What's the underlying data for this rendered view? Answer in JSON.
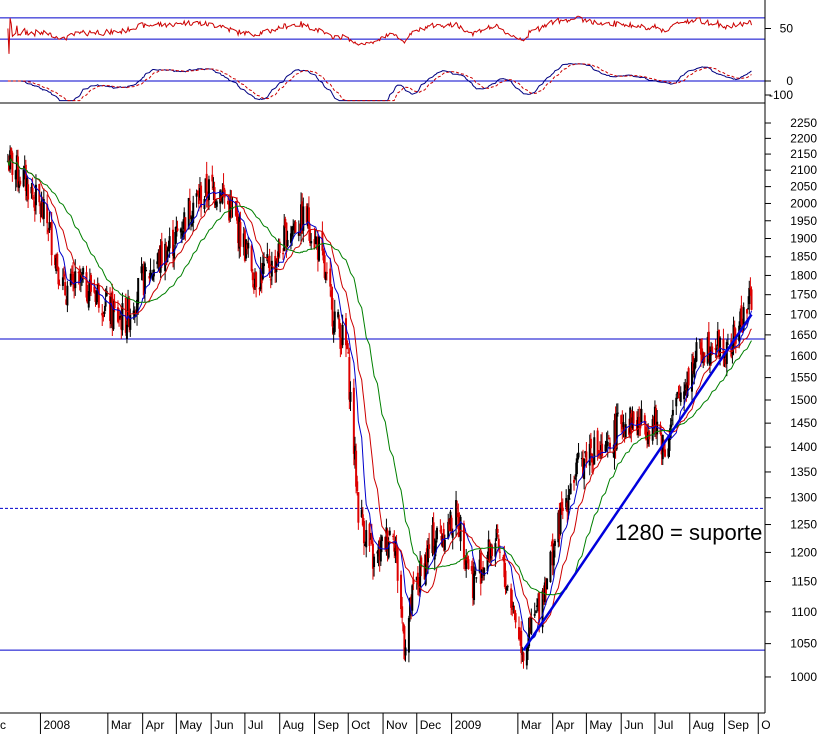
{
  "chart_data": [
    {
      "type": "line",
      "panel": "oscillator-upper",
      "ylim": [
        0,
        100
      ],
      "yticks": [
        "50"
      ],
      "hlines": [
        30,
        70
      ],
      "series_colors": [
        "#cc0000"
      ]
    },
    {
      "type": "line",
      "panel": "oscillator-lower",
      "ylim": [
        -150,
        150
      ],
      "yticks": [
        "0",
        "-100"
      ],
      "hlines": [
        0
      ],
      "series_colors": [
        "#000080",
        "#cc0000"
      ]
    },
    {
      "type": "candlestick",
      "panel": "price",
      "scale": "log",
      "ylim": [
        950,
        2300
      ],
      "yticks": [
        "2250",
        "2200",
        "2150",
        "2100",
        "2050",
        "2000",
        "1950",
        "1900",
        "1850",
        "1800",
        "1750",
        "1700",
        "1650",
        "1600",
        "1550",
        "1500",
        "1450",
        "1400",
        "1350",
        "1300",
        "1250",
        "1200",
        "1150",
        "1100",
        "1050",
        "1000"
      ],
      "xticks": [
        "c",
        "2008",
        "Mar",
        "Apr",
        "May",
        "Jun",
        "Jul",
        "Aug",
        "Sep",
        "Oct",
        "Nov",
        "Dec",
        "2009",
        "Mar",
        "Apr",
        "May",
        "Jun",
        "Jul",
        "Aug",
        "Sep",
        "O"
      ],
      "up_color": "#000000",
      "down_color": "#dd0000",
      "hlines": [
        1640,
        1280,
        1040
      ],
      "hline_styles": [
        "solid",
        "dashed",
        "solid"
      ],
      "trendline": {
        "from": [
          "2009-03-06",
          1040
        ],
        "to": [
          "2009-09-25",
          1700
        ],
        "color": "#0000dd"
      },
      "moving_averages": [
        {
          "color": "#0000cc"
        },
        {
          "color": "#cc0000"
        },
        {
          "color": "#008000"
        }
      ],
      "annotation": "1280 = suporte",
      "price_path": [
        [
          "2007-12-03",
          2130
        ],
        [
          "2007-12-20",
          2060
        ],
        [
          "2008-01-08",
          1940
        ],
        [
          "2008-01-22",
          1760
        ],
        [
          "2008-02-05",
          1780
        ],
        [
          "2008-02-20",
          1760
        ],
        [
          "2008-03-05",
          1700
        ],
        [
          "2008-03-17",
          1690
        ],
        [
          "2008-03-31",
          1780
        ],
        [
          "2008-04-15",
          1840
        ],
        [
          "2008-04-30",
          1900
        ],
        [
          "2008-05-15",
          2000
        ],
        [
          "2008-05-30",
          2040
        ],
        [
          "2008-06-10",
          2040
        ],
        [
          "2008-06-25",
          1930
        ],
        [
          "2008-07-10",
          1800
        ],
        [
          "2008-07-25",
          1820
        ],
        [
          "2008-08-10",
          1930
        ],
        [
          "2008-08-25",
          1960
        ],
        [
          "2008-09-05",
          1870
        ],
        [
          "2008-09-16",
          1720
        ],
        [
          "2008-09-30",
          1610
        ],
        [
          "2008-10-10",
          1280
        ],
        [
          "2008-10-24",
          1180
        ],
        [
          "2008-11-10",
          1250
        ],
        [
          "2008-11-20",
          1050
        ],
        [
          "2008-11-28",
          1130
        ],
        [
          "2008-12-15",
          1220
        ],
        [
          "2008-12-31",
          1250
        ],
        [
          "2009-01-06",
          1270
        ],
        [
          "2009-01-20",
          1150
        ],
        [
          "2009-02-09",
          1220
        ],
        [
          "2009-02-23",
          1120
        ],
        [
          "2009-03-06",
          1040
        ],
        [
          "2009-03-20",
          1110
        ],
        [
          "2009-04-03",
          1220
        ],
        [
          "2009-04-17",
          1330
        ],
        [
          "2009-05-04",
          1400
        ],
        [
          "2009-05-18",
          1380
        ],
        [
          "2009-06-01",
          1460
        ],
        [
          "2009-06-15",
          1450
        ],
        [
          "2009-07-01",
          1450
        ],
        [
          "2009-07-10",
          1400
        ],
        [
          "2009-07-24",
          1520
        ],
        [
          "2009-08-07",
          1600
        ],
        [
          "2009-08-21",
          1640
        ],
        [
          "2009-09-04",
          1600
        ],
        [
          "2009-09-15",
          1680
        ],
        [
          "2009-09-25",
          1740
        ]
      ]
    }
  ]
}
